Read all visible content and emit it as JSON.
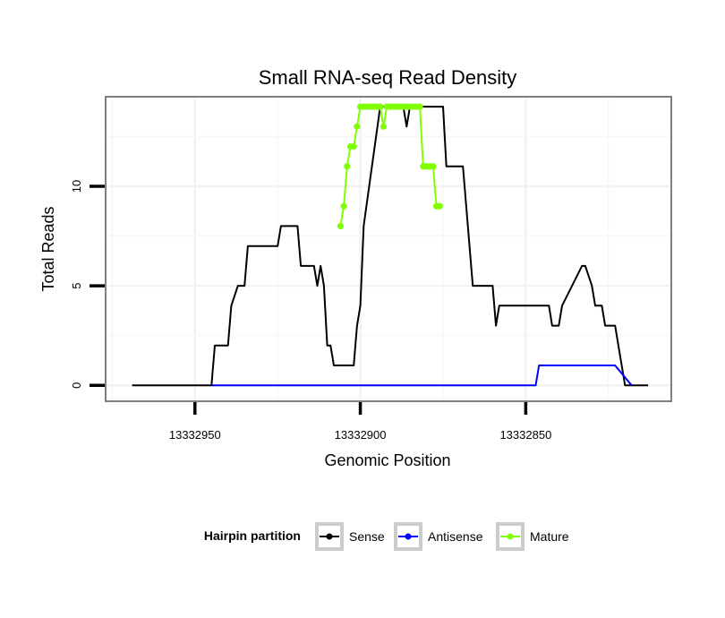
{
  "chart_data": {
    "type": "line",
    "title": "Small RNA-seq Read Density",
    "xlabel": "Genomic Position",
    "ylabel": "Total Reads",
    "x_reversed": true,
    "xlim": [
      13332977,
      13332806
    ],
    "ylim": [
      -0.8,
      14.5
    ],
    "x_ticks": [
      13332950,
      13332900,
      13332850
    ],
    "x_tick_labels": [
      "13332950",
      "13332900",
      "13332850"
    ],
    "y_ticks": [
      0,
      5,
      10
    ],
    "y_tick_labels": [
      "0",
      "5",
      "10"
    ],
    "grid": true,
    "legend": {
      "title": "Hairpin partition",
      "position": "bottom",
      "entries": [
        {
          "label": "Sense",
          "color": "#000000"
        },
        {
          "label": "Antisense",
          "color": "#0000ff"
        },
        {
          "label": "Mature",
          "color": "#7fff00"
        }
      ]
    },
    "series": [
      {
        "name": "Sense",
        "color": "#000000",
        "x": [
          13332969,
          13332945,
          13332944,
          13332940,
          13332939,
          13332937,
          13332935,
          13332934,
          13332925,
          13332924,
          13332919,
          13332918,
          13332914,
          13332913,
          13332912,
          13332911,
          13332910,
          13332909,
          13332908,
          13332907,
          13332902,
          13332901,
          13332900,
          13332899,
          13332894,
          13332893,
          13332892,
          13332887,
          13332886,
          13332885,
          13332882,
          13332881,
          13332879,
          13332875,
          13332874,
          13332869,
          13332868,
          13332866,
          13332865,
          13332860,
          13332859,
          13332858,
          13332856,
          13332855,
          13332843,
          13332842,
          13332840,
          13332839,
          13332833,
          13332832,
          13332830,
          13332829,
          13332827,
          13332826,
          13332823,
          13332821,
          13332820,
          13332813
        ],
        "y": [
          0,
          0,
          2,
          2,
          4,
          5,
          5,
          7,
          7,
          8,
          8,
          6,
          6,
          5,
          6,
          5,
          2,
          2,
          1,
          1,
          1,
          3,
          4,
          8,
          14,
          14,
          14,
          14,
          13,
          14,
          14,
          14,
          14,
          14,
          11,
          11,
          9,
          5,
          5,
          5,
          3,
          4,
          4,
          4,
          4,
          3,
          3,
          4,
          6,
          6,
          5,
          4,
          4,
          3,
          3,
          1,
          0,
          0
        ]
      },
      {
        "name": "Antisense",
        "color": "#0000ff",
        "x": [
          13332945,
          13332856,
          13332855,
          13332847,
          13332846,
          13332824,
          13332823,
          13332818
        ],
        "y": [
          0,
          0,
          0,
          0,
          1,
          1,
          1,
          0
        ]
      },
      {
        "name": "Mature",
        "color": "#7fff00",
        "x": [
          13332906,
          13332905,
          13332904,
          13332903,
          13332902,
          13332901,
          13332900,
          13332899,
          13332898,
          13332897,
          13332896,
          13332895,
          13332894,
          13332893,
          13332892,
          13332891,
          13332890,
          13332889,
          13332888,
          13332887,
          13332886,
          13332885,
          13332884,
          13332883,
          13332882,
          13332881,
          13332880,
          13332879,
          13332878,
          13332877,
          13332876
        ],
        "y": [
          8,
          9,
          11,
          12,
          12,
          13,
          14,
          14,
          14,
          14,
          14,
          14,
          14,
          13,
          14,
          14,
          14,
          14,
          14,
          14,
          14,
          14,
          14,
          14,
          14,
          11,
          11,
          11,
          11,
          9,
          9
        ]
      }
    ]
  }
}
